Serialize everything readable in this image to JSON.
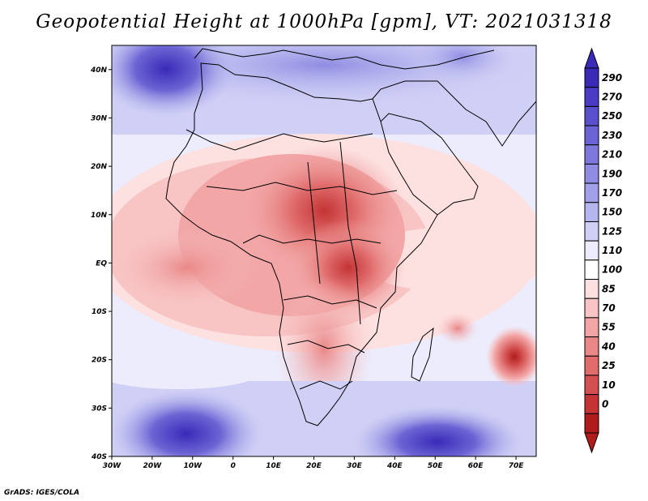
{
  "title": "Geopotential Height at 1000hPa [gpm], VT: 2021031318",
  "map": {
    "lon_range": [
      -30,
      75
    ],
    "lat_range": [
      -40,
      45
    ],
    "lat_ticks": [
      {
        "value": 40,
        "label": "40N"
      },
      {
        "value": 30,
        "label": "30N"
      },
      {
        "value": 20,
        "label": "20N"
      },
      {
        "value": 10,
        "label": "10N"
      },
      {
        "value": 0,
        "label": "EQ"
      },
      {
        "value": -10,
        "label": "10S"
      },
      {
        "value": -20,
        "label": "20S"
      },
      {
        "value": -30,
        "label": "30S"
      },
      {
        "value": -40,
        "label": "40S"
      }
    ],
    "lon_ticks": [
      {
        "value": -30,
        "label": "30W"
      },
      {
        "value": -20,
        "label": "20W"
      },
      {
        "value": -10,
        "label": "10W"
      },
      {
        "value": 0,
        "label": "0"
      },
      {
        "value": 10,
        "label": "10E"
      },
      {
        "value": 20,
        "label": "20E"
      },
      {
        "value": 30,
        "label": "30E"
      },
      {
        "value": 40,
        "label": "40E"
      },
      {
        "value": 50,
        "label": "50E"
      },
      {
        "value": 60,
        "label": "60E"
      },
      {
        "value": 70,
        "label": "70E"
      }
    ]
  },
  "colorbar": {
    "labels": [
      "290",
      "270",
      "250",
      "230",
      "210",
      "190",
      "170",
      "150",
      "125",
      "110",
      "100",
      "85",
      "70",
      "55",
      "40",
      "25",
      "10",
      "0"
    ],
    "colors": [
      "#3a2ab8",
      "#4a3cc4",
      "#5a50cc",
      "#6c64d4",
      "#7e78dc",
      "#908ce2",
      "#a2a0e8",
      "#b6b6ee",
      "#d0d0f6",
      "#ececfc",
      "#ffffff",
      "#fde0e0",
      "#f8c4c4",
      "#f2a6a6",
      "#ea8888",
      "#e06c6c",
      "#d45050",
      "#c43434",
      "#b01c1c"
    ]
  },
  "credit": "GrADS: IGES/COLA"
}
